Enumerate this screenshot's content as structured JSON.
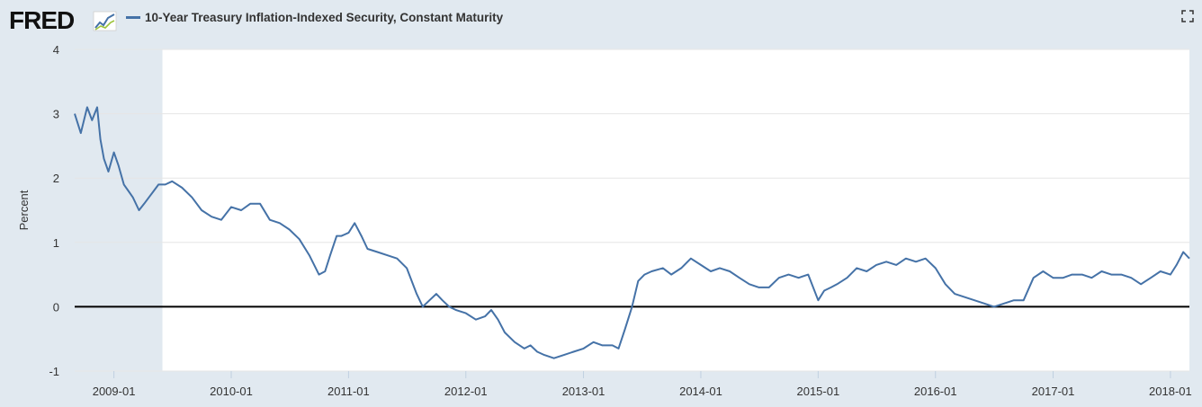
{
  "header": {
    "logo_text": "FRED",
    "series_title": "10-Year Treasury Inflation-Indexed Security, Constant Maturity",
    "logo_icon": "line-chart-icon",
    "expand_icon": "fullscreen-expand-icon"
  },
  "colors": {
    "series": "#4572a7",
    "background": "#e1e9f0",
    "plot": "#ffffff",
    "recession_band": "#e1e9f0",
    "zero_line": "#000000"
  },
  "chart_data": {
    "type": "line",
    "title": "10-Year Treasury Inflation-Indexed Security, Constant Maturity",
    "xlabel": "",
    "ylabel": "Percent",
    "ylim": [
      -1,
      4
    ],
    "y_ticks": [
      -1,
      0,
      1,
      2,
      3,
      4
    ],
    "xlim": [
      "2008-09-01",
      "2018-03-01"
    ],
    "x_tick_labels": [
      "2009-01",
      "2010-01",
      "2011-01",
      "2012-01",
      "2013-01",
      "2014-01",
      "2015-01",
      "2016-01",
      "2017-01",
      "2018-01"
    ],
    "x_tick_dates": [
      "2009-01-01",
      "2010-01-01",
      "2011-01-01",
      "2012-01-01",
      "2013-01-01",
      "2014-01-01",
      "2015-01-01",
      "2016-01-01",
      "2017-01-01",
      "2018-01-01"
    ],
    "grid": true,
    "legend": "top-left",
    "shaded_regions": [
      {
        "start": "2008-09-01",
        "end": "2009-06-01"
      }
    ],
    "reference_lines": [
      {
        "y": 0
      }
    ],
    "series": [
      {
        "name": "10-Year Treasury Inflation-Indexed Security, Constant Maturity",
        "x": [
          "2008-09-01",
          "2008-09-20",
          "2008-10-10",
          "2008-10-25",
          "2008-11-10",
          "2008-11-20",
          "2008-12-01",
          "2008-12-15",
          "2009-01-01",
          "2009-01-15",
          "2009-02-01",
          "2009-02-15",
          "2009-03-01",
          "2009-03-20",
          "2009-04-05",
          "2009-04-20",
          "2009-05-05",
          "2009-05-20",
          "2009-06-10",
          "2009-07-01",
          "2009-08-01",
          "2009-09-01",
          "2009-10-01",
          "2009-11-01",
          "2009-12-01",
          "2010-01-01",
          "2010-02-01",
          "2010-03-01",
          "2010-04-01",
          "2010-05-01",
          "2010-06-01",
          "2010-07-01",
          "2010-08-01",
          "2010-09-01",
          "2010-10-01",
          "2010-10-20",
          "2010-11-05",
          "2010-11-25",
          "2010-12-10",
          "2011-01-01",
          "2011-01-20",
          "2011-02-10",
          "2011-03-01",
          "2011-04-01",
          "2011-05-01",
          "2011-06-01",
          "2011-07-01",
          "2011-08-01",
          "2011-08-20",
          "2011-09-10",
          "2011-10-01",
          "2011-10-20",
          "2011-11-10",
          "2011-12-01",
          "2012-01-01",
          "2012-02-01",
          "2012-03-01",
          "2012-03-20",
          "2012-04-10",
          "2012-05-01",
          "2012-06-01",
          "2012-07-01",
          "2012-07-20",
          "2012-08-10",
          "2012-09-01",
          "2012-10-01",
          "2012-11-01",
          "2012-12-01",
          "2013-01-01",
          "2013-02-01",
          "2013-03-01",
          "2013-04-01",
          "2013-04-20",
          "2013-05-10",
          "2013-06-01",
          "2013-06-20",
          "2013-07-10",
          "2013-08-01",
          "2013-09-05",
          "2013-10-01",
          "2013-11-01",
          "2013-12-01",
          "2014-01-01",
          "2014-02-01",
          "2014-03-01",
          "2014-04-01",
          "2014-05-01",
          "2014-06-01",
          "2014-07-01",
          "2014-08-01",
          "2014-09-01",
          "2014-10-01",
          "2014-11-01",
          "2014-12-01",
          "2015-01-01",
          "2015-01-20",
          "2015-02-10",
          "2015-03-01",
          "2015-04-01",
          "2015-05-01",
          "2015-06-01",
          "2015-07-01",
          "2015-08-01",
          "2015-09-01",
          "2015-10-01",
          "2015-11-01",
          "2015-12-01",
          "2016-01-01",
          "2016-02-01",
          "2016-03-01",
          "2016-04-01",
          "2016-05-01",
          "2016-06-01",
          "2016-07-01",
          "2016-08-01",
          "2016-09-01",
          "2016-10-01",
          "2016-11-01",
          "2016-12-01",
          "2017-01-01",
          "2017-02-01",
          "2017-03-01",
          "2017-04-01",
          "2017-05-01",
          "2017-06-01",
          "2017-07-01",
          "2017-08-01",
          "2017-09-01",
          "2017-10-01",
          "2017-11-01",
          "2017-12-01",
          "2018-01-01",
          "2018-01-20",
          "2018-02-10",
          "2018-03-01"
        ],
        "values": [
          3.0,
          2.7,
          3.1,
          2.9,
          3.1,
          2.6,
          2.3,
          2.1,
          2.4,
          2.2,
          1.9,
          1.8,
          1.7,
          1.5,
          1.6,
          1.7,
          1.8,
          1.9,
          1.9,
          1.95,
          1.85,
          1.7,
          1.5,
          1.4,
          1.35,
          1.55,
          1.5,
          1.6,
          1.6,
          1.35,
          1.3,
          1.2,
          1.05,
          0.8,
          0.5,
          0.55,
          0.8,
          1.1,
          1.1,
          1.15,
          1.3,
          1.1,
          0.9,
          0.85,
          0.8,
          0.75,
          0.6,
          0.2,
          0.0,
          0.1,
          0.2,
          0.1,
          0.0,
          -0.05,
          -0.1,
          -0.2,
          -0.15,
          -0.05,
          -0.2,
          -0.4,
          -0.55,
          -0.65,
          -0.6,
          -0.7,
          -0.75,
          -0.8,
          -0.75,
          -0.7,
          -0.65,
          -0.55,
          -0.6,
          -0.6,
          -0.65,
          -0.35,
          0.0,
          0.4,
          0.5,
          0.55,
          0.6,
          0.5,
          0.6,
          0.75,
          0.65,
          0.55,
          0.6,
          0.55,
          0.45,
          0.35,
          0.3,
          0.3,
          0.45,
          0.5,
          0.45,
          0.5,
          0.1,
          0.25,
          0.3,
          0.35,
          0.45,
          0.6,
          0.55,
          0.65,
          0.7,
          0.65,
          0.75,
          0.7,
          0.75,
          0.6,
          0.35,
          0.2,
          0.15,
          0.1,
          0.05,
          0.0,
          0.05,
          0.1,
          0.1,
          0.45,
          0.55,
          0.45,
          0.45,
          0.5,
          0.5,
          0.45,
          0.55,
          0.5,
          0.5,
          0.45,
          0.35,
          0.45,
          0.55,
          0.5,
          0.65,
          0.85,
          0.75
        ]
      }
    ]
  }
}
